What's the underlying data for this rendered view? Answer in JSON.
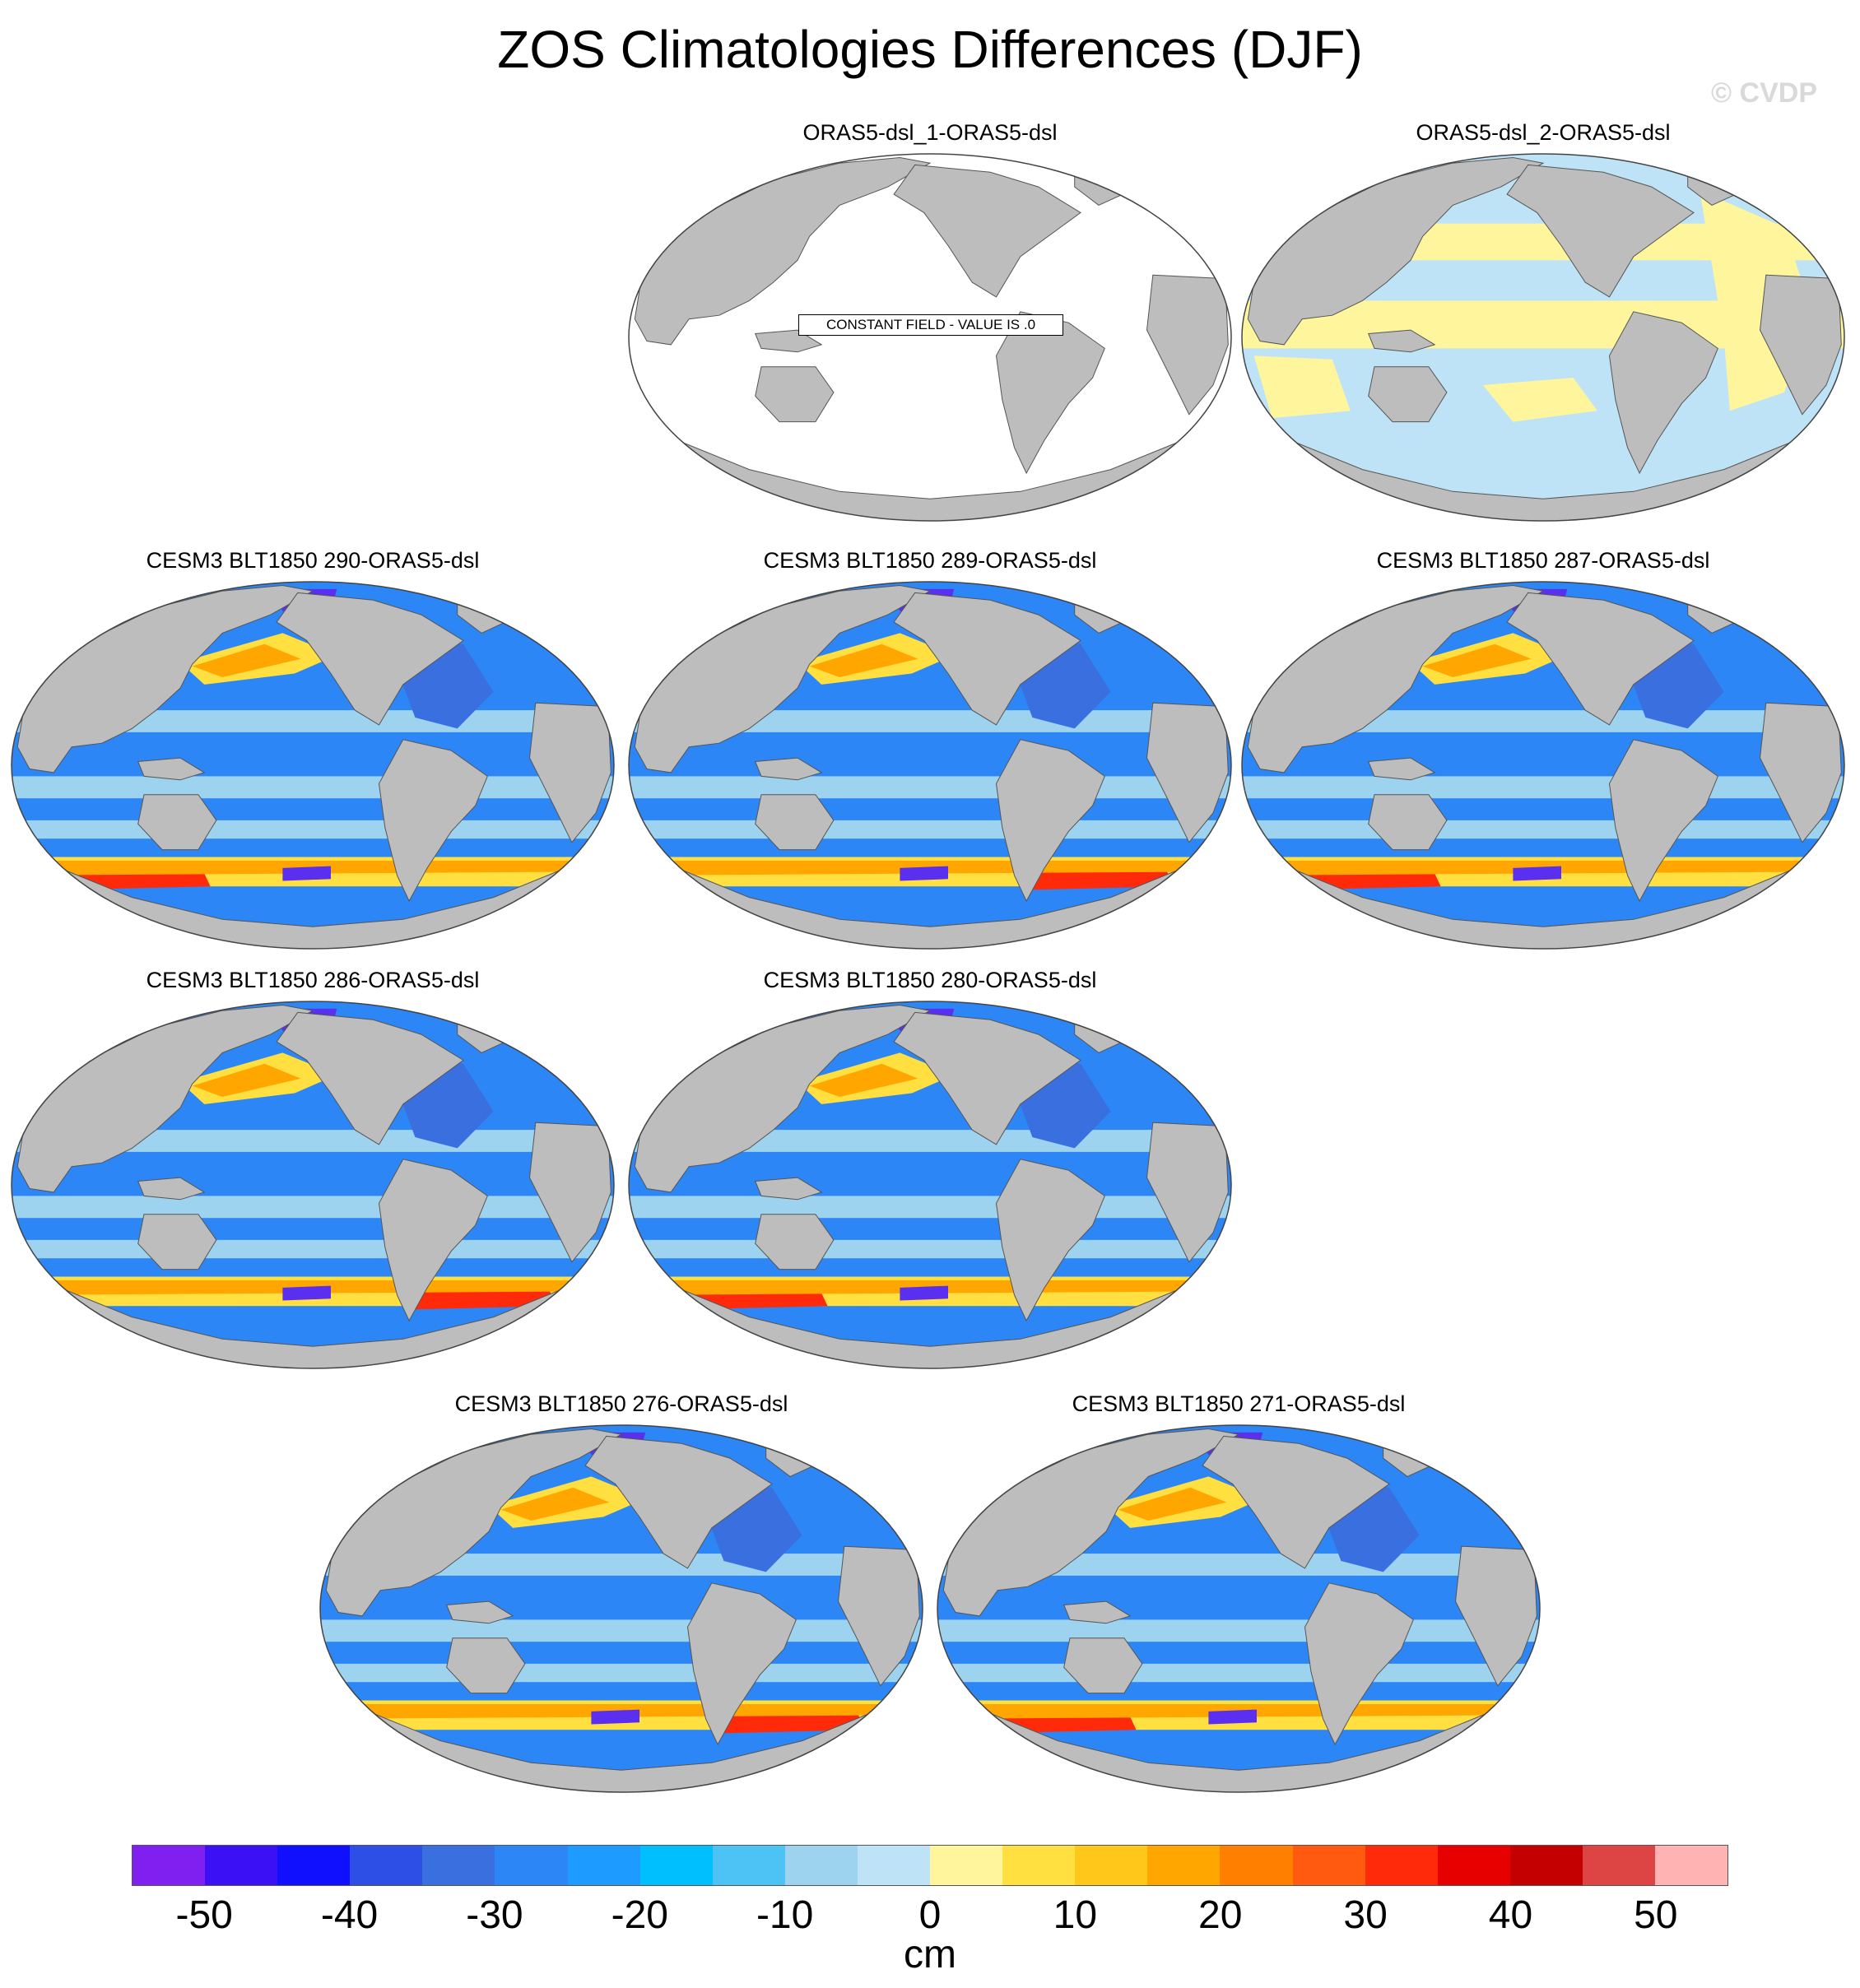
{
  "figure": {
    "title": "ZOS Climatologies Differences (DJF)",
    "watermark": "© CVDP",
    "constant_message": "CONSTANT FIELD - VALUE IS .0"
  },
  "panels": [
    {
      "title": "ORAS5-dsl_1-ORAS5-dsl",
      "style": "constant"
    },
    {
      "title": "ORAS5-dsl_2-ORAS5-dsl",
      "style": "near-zero"
    },
    {
      "title": "CESM3 BLT1850 290-ORAS5-dsl",
      "style": "model"
    },
    {
      "title": "CESM3 BLT1850 289-ORAS5-dsl",
      "style": "model"
    },
    {
      "title": "CESM3 BLT1850 287-ORAS5-dsl",
      "style": "model"
    },
    {
      "title": "CESM3 BLT1850 286-ORAS5-dsl",
      "style": "model"
    },
    {
      "title": "CESM3 BLT1850 280-ORAS5-dsl",
      "style": "model"
    },
    {
      "title": "CESM3 BLT1850 276-ORAS5-dsl",
      "style": "model"
    },
    {
      "title": "CESM3 BLT1850 271-ORAS5-dsl",
      "style": "model"
    }
  ],
  "colorbar": {
    "unit": "cm",
    "tick_labels": [
      "-50",
      "-40",
      "-30",
      "-20",
      "-10",
      "0",
      "10",
      "20",
      "30",
      "40",
      "50"
    ],
    "colors": [
      "#7f1ff0",
      "#3b10f5",
      "#1010ff",
      "#2e4fe6",
      "#3a6fe0",
      "#2c86f5",
      "#1e9bff",
      "#00bfff",
      "#4dc3f5",
      "#9dd3ee",
      "#bfe3f6",
      "#fff59d",
      "#ffe040",
      "#ffc71a",
      "#ffa600",
      "#ff8000",
      "#ff5a10",
      "#ff2a0a",
      "#e60000",
      "#c40000",
      "#dd4444",
      "#ffb3b3"
    ]
  },
  "map_colors": {
    "land": "#bdbdbd",
    "ocean_constant": "#ffffff",
    "ocean_light_blue": "#bfe3f6",
    "ocean_light_yellow": "#fff59d",
    "ocean_mid_blue": "#2c86f5",
    "ocean_pale_blue": "#9dd3ee",
    "ocean_dark_blue": "#3a6fe0",
    "ocean_purple": "#5a2ff0",
    "warm_yellow": "#ffe040",
    "warm_orange": "#ffa600",
    "warm_red": "#ff2a0a"
  }
}
